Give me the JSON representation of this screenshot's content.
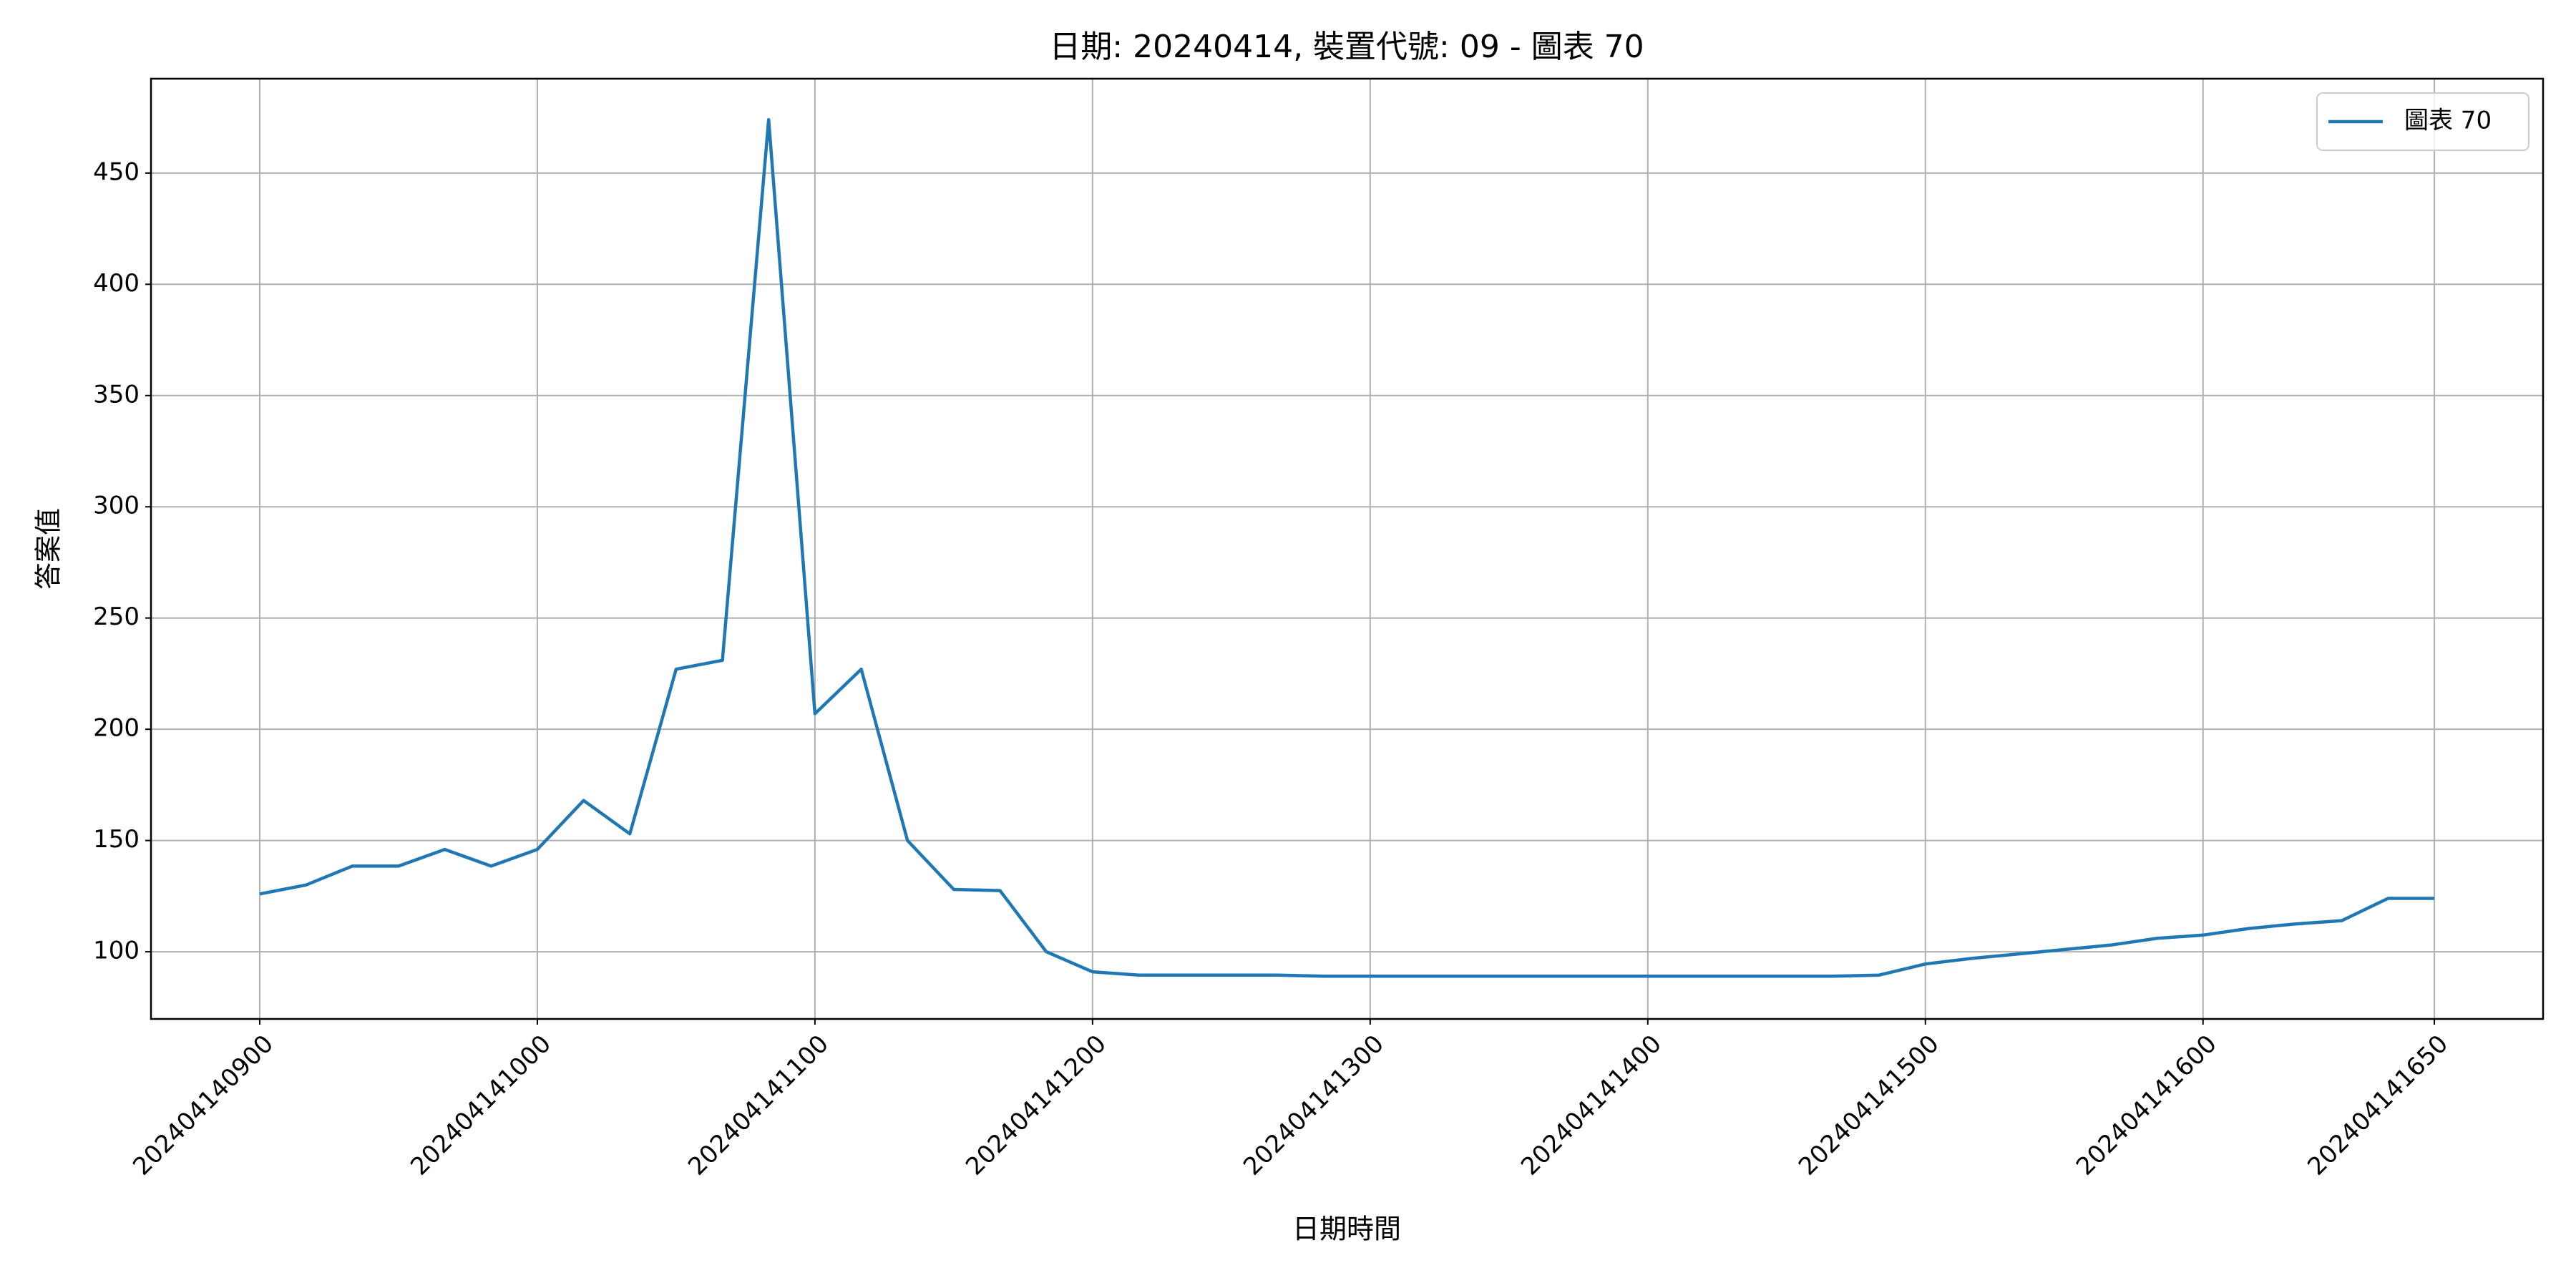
{
  "chart_data": {
    "type": "line",
    "title": "日期: 20240414, 裝置代號: 09 - 圖表 70",
    "xlabel": "日期時間",
    "ylabel": "答案值",
    "x": [
      "202404140900",
      "202404140910",
      "202404140920",
      "202404140930",
      "202404140940",
      "202404140950",
      "202404141000",
      "202404141010",
      "202404141020",
      "202404141030",
      "202404141040",
      "202404141050",
      "202404141100",
      "202404141110",
      "202404141120",
      "202404141130",
      "202404141140",
      "202404141150",
      "202404141200",
      "202404141210",
      "202404141220",
      "202404141230",
      "202404141240",
      "202404141250",
      "202404141300",
      "202404141310",
      "202404141320",
      "202404141330",
      "202404141340",
      "202404141350",
      "202404141400",
      "202404141410",
      "202404141420",
      "202404141430",
      "202404141440",
      "202404141450",
      "202404141500",
      "202404141510",
      "202404141520",
      "202404141530",
      "202404141540",
      "202404141550",
      "202404141600",
      "202404141610",
      "202404141620",
      "202404141630",
      "202404141640",
      "202404141650"
    ],
    "series": [
      {
        "name": "圖表 70",
        "color": "#1f77b4",
        "values": [
          126,
          130,
          138.5,
          138.5,
          146,
          138.5,
          146,
          168,
          153,
          227,
          231,
          474,
          207,
          227,
          150,
          128,
          127.5,
          100,
          91,
          89.5,
          89.5,
          89.5,
          89.5,
          89,
          89,
          89,
          89,
          89,
          89,
          89,
          89,
          89,
          89,
          89,
          89,
          89.5,
          94.5,
          97,
          99,
          101,
          103,
          106,
          107.5,
          110.5,
          112.5,
          114,
          124,
          124
        ]
      }
    ],
    "xticks": [
      "202404140900",
      "202404141000",
      "202404141100",
      "202404141200",
      "202404141300",
      "202404141400",
      "202404141500",
      "202404141600",
      "202404141650"
    ],
    "ylim": [
      69.8,
      492.4
    ],
    "yticks": [
      100,
      150,
      200,
      250,
      300,
      350,
      400,
      450
    ],
    "grid": true,
    "legend": "upper right"
  }
}
